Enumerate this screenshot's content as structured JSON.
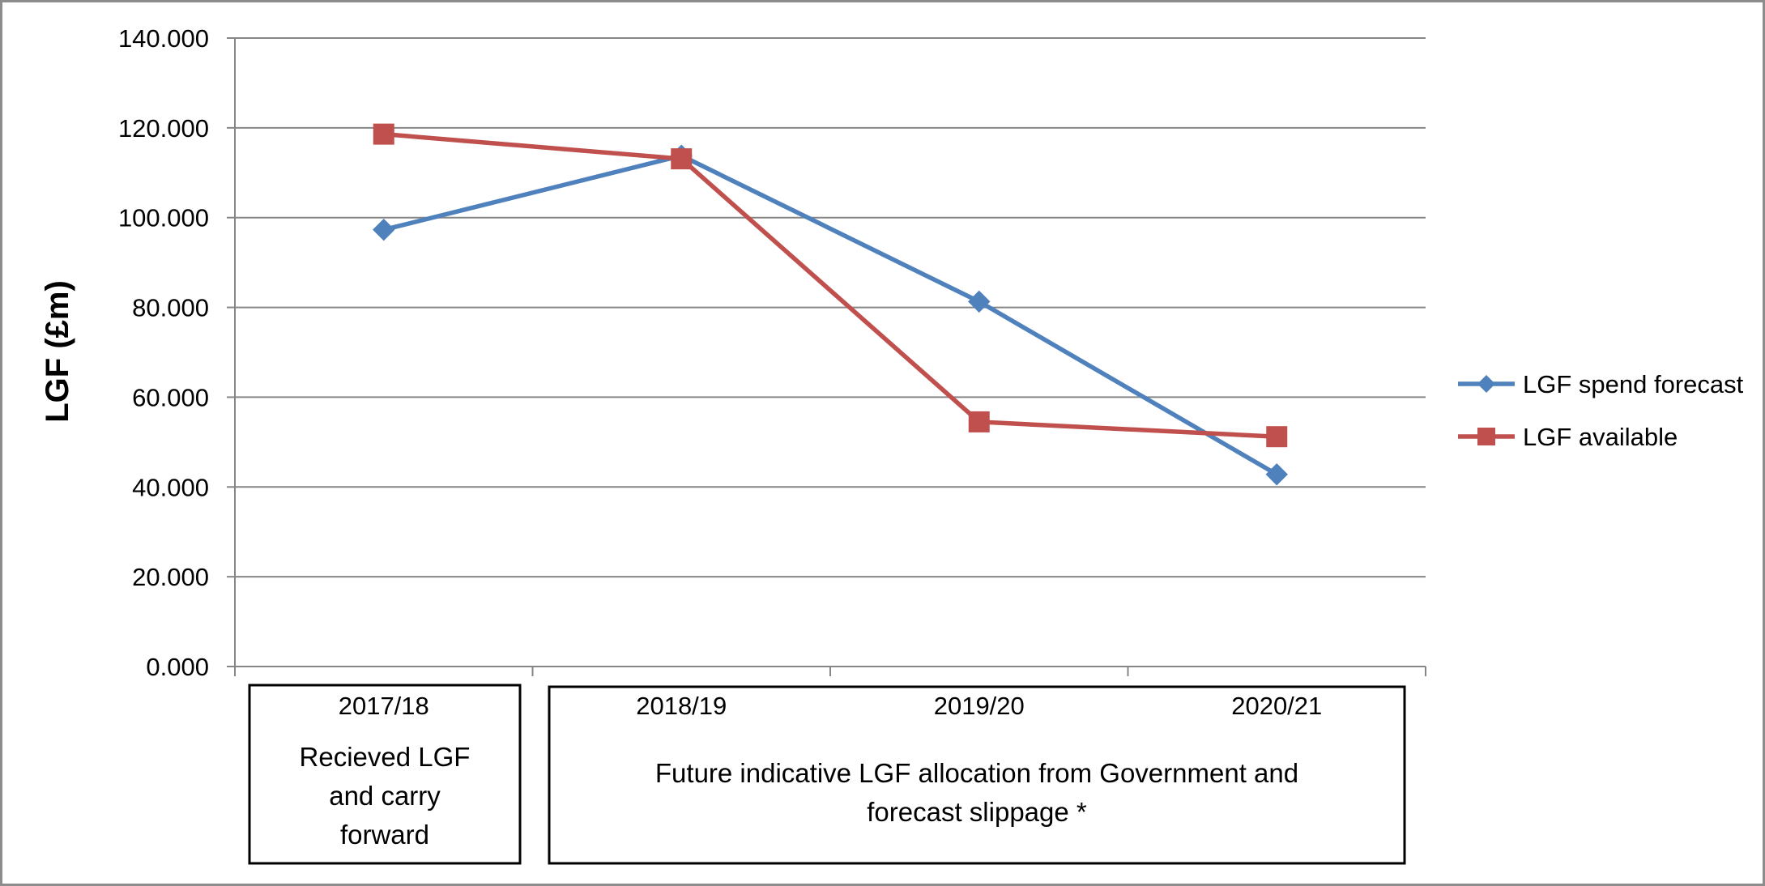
{
  "chart_data": {
    "type": "line",
    "title": "",
    "xlabel": "",
    "ylabel": "LGF (£m)",
    "categories": [
      "2017/18",
      "2018/19",
      "2019/20",
      "2020/21"
    ],
    "ylim": [
      0,
      140
    ],
    "yticks": [
      "0.000",
      "20.000",
      "40.000",
      "60.000",
      "80.000",
      "100.000",
      "120.000",
      "140.000"
    ],
    "grid": true,
    "legend_position": "right",
    "series": [
      {
        "name": "LGF spend forecast",
        "values": [
          97.3,
          113.8,
          81.3,
          42.8
        ],
        "color": "#4f81bd",
        "marker": "diamond"
      },
      {
        "name": "LGF available",
        "values": [
          118.6,
          113.1,
          54.5,
          51.2
        ],
        "color": "#c0504d",
        "marker": "square"
      }
    ],
    "annotations": [
      {
        "text_lines": [
          "Recieved LGF",
          "and carry",
          "forward"
        ]
      },
      {
        "text_lines": [
          "Future indicative LGF allocation from Government and",
          "forecast slippage *"
        ]
      }
    ]
  }
}
